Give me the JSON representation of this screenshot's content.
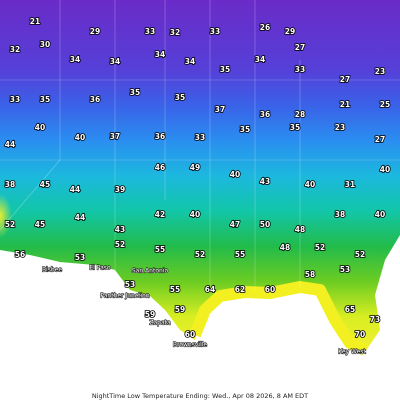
{
  "title": "NightTime Low Temperature Ending: Wed., Apr 08 2026, 8 AM EDT",
  "temperatures": [
    21,
    29,
    33,
    32,
    33,
    26,
    29,
    27,
    32,
    30,
    34,
    34,
    34,
    34,
    35,
    34,
    33,
    27,
    23,
    33,
    35,
    36,
    35,
    35,
    37,
    36,
    28,
    21,
    25,
    44,
    40,
    40,
    37,
    36,
    33,
    35,
    35,
    23,
    27,
    38,
    45,
    44,
    39,
    46,
    49,
    40,
    43,
    40,
    31,
    40,
    52,
    45,
    44,
    43,
    42,
    40,
    47,
    50,
    48,
    38,
    40,
    56,
    53,
    52,
    55,
    52,
    55,
    48,
    52,
    52,
    53,
    55,
    64,
    62,
    60,
    58,
    53,
    59,
    59,
    60,
    65,
    70,
    73
  ],
  "cities": [
    "Bisbee",
    "El Paso",
    "San Antonio",
    "Panther Junction",
    "Zapata",
    "Brownsville",
    "Key West"
  ]
}
